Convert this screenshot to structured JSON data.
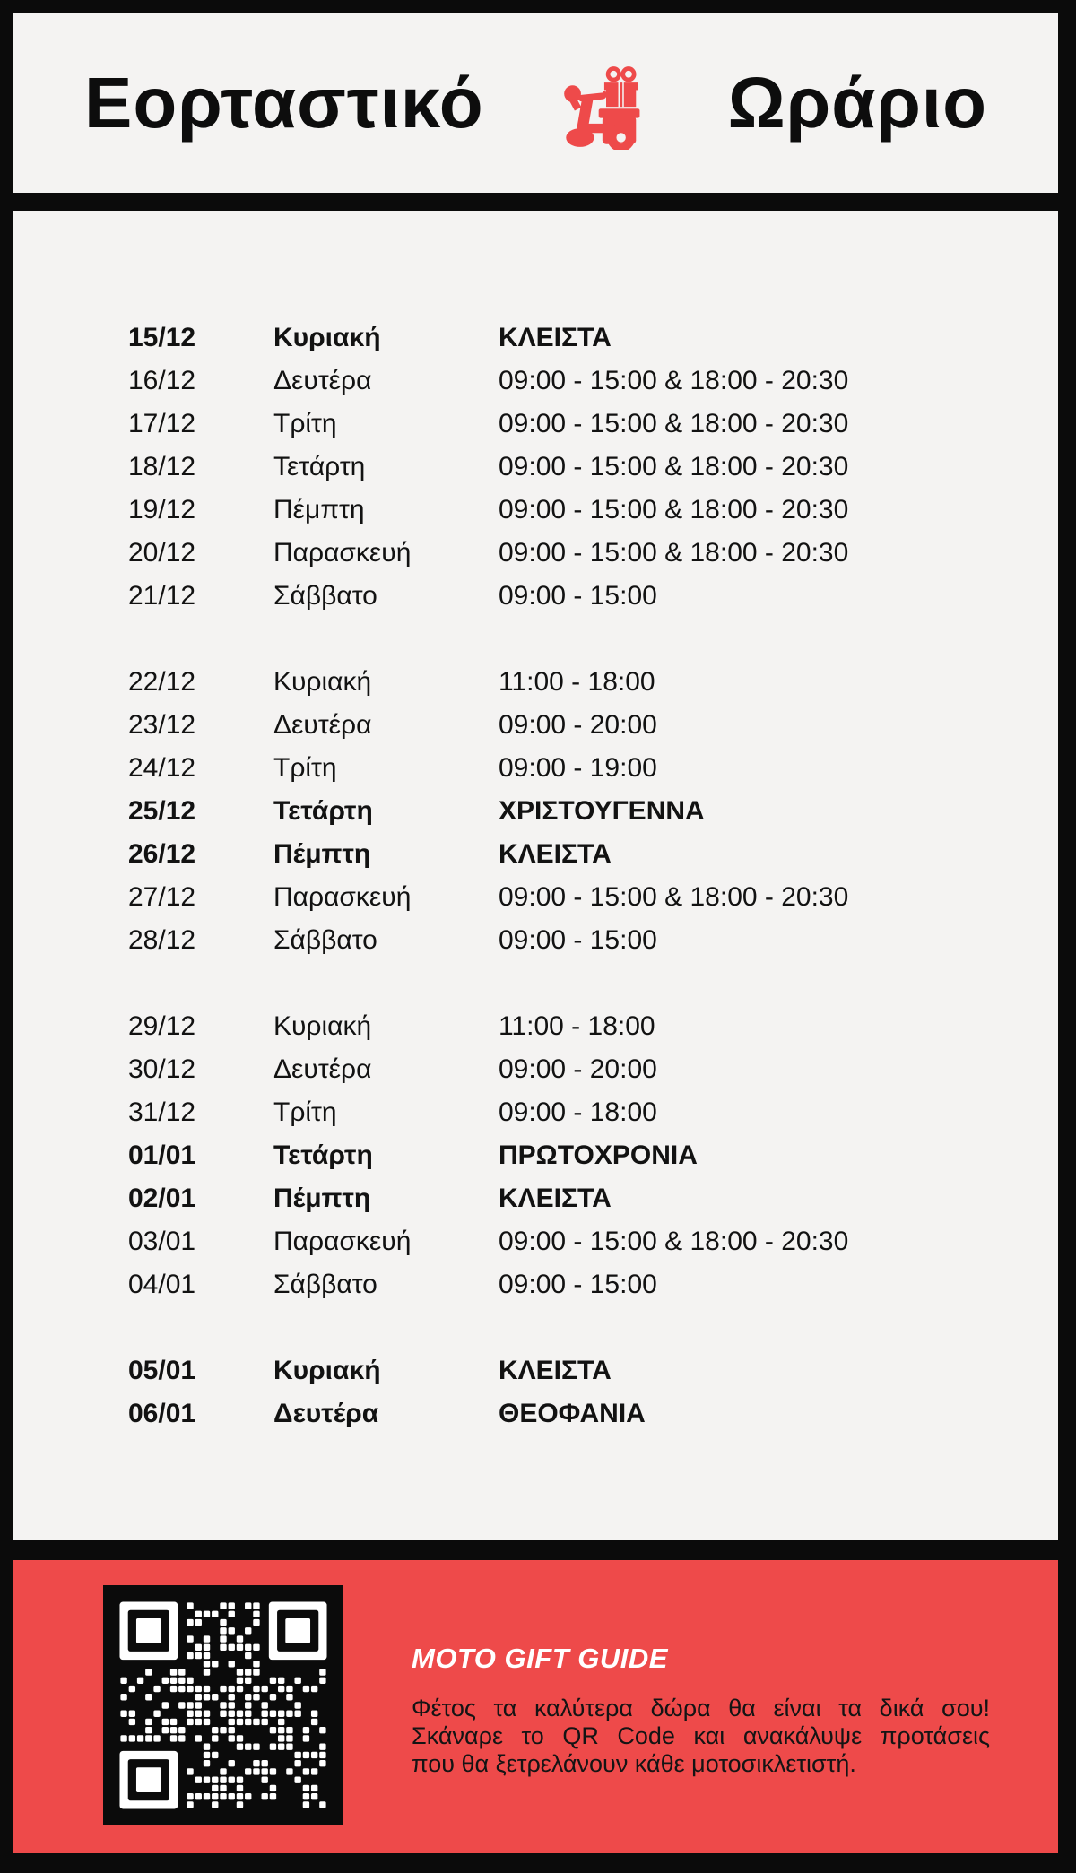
{
  "header": {
    "title_left": "Εορταστικό",
    "title_right": "Ωράριο",
    "icon": "scooter-gift-icon"
  },
  "schedule": {
    "groups": [
      {
        "rows": [
          {
            "date": "15/12",
            "day": "Κυριακή",
            "hours": "ΚΛΕΙΣΤΑ",
            "bold": true
          },
          {
            "date": "16/12",
            "day": "Δευτέρα",
            "hours": "09:00 - 15:00 & 18:00 - 20:30",
            "bold": false
          },
          {
            "date": "17/12",
            "day": "Τρίτη",
            "hours": "09:00 - 15:00 & 18:00 - 20:30",
            "bold": false
          },
          {
            "date": "18/12",
            "day": "Τετάρτη",
            "hours": "09:00 - 15:00 & 18:00 - 20:30",
            "bold": false
          },
          {
            "date": "19/12",
            "day": "Πέμπτη",
            "hours": "09:00 - 15:00 & 18:00 - 20:30",
            "bold": false
          },
          {
            "date": "20/12",
            "day": "Παρασκευή",
            "hours": "09:00 - 15:00 & 18:00 - 20:30",
            "bold": false
          },
          {
            "date": "21/12",
            "day": "Σάββατο",
            "hours": "09:00 - 15:00",
            "bold": false
          }
        ]
      },
      {
        "rows": [
          {
            "date": "22/12",
            "day": "Κυριακή",
            "hours": "11:00 - 18:00",
            "bold": false
          },
          {
            "date": "23/12",
            "day": "Δευτέρα",
            "hours": "09:00 - 20:00",
            "bold": false
          },
          {
            "date": "24/12",
            "day": "Τρίτη",
            "hours": "09:00 - 19:00",
            "bold": false
          },
          {
            "date": "25/12",
            "day": "Τετάρτη",
            "hours": "ΧΡΙΣΤΟΥΓΕΝΝΑ",
            "bold": true
          },
          {
            "date": "26/12",
            "day": "Πέμπτη",
            "hours": "ΚΛΕΙΣΤΑ",
            "bold": true
          },
          {
            "date": "27/12",
            "day": "Παρασκευή",
            "hours": "09:00 - 15:00 & 18:00 - 20:30",
            "bold": false
          },
          {
            "date": "28/12",
            "day": "Σάββατο",
            "hours": "09:00 - 15:00",
            "bold": false
          }
        ]
      },
      {
        "rows": [
          {
            "date": "29/12",
            "day": "Κυριακή",
            "hours": "11:00 - 18:00",
            "bold": false
          },
          {
            "date": "30/12",
            "day": "Δευτέρα",
            "hours": "09:00 - 20:00",
            "bold": false
          },
          {
            "date": "31/12",
            "day": "Τρίτη",
            "hours": "09:00 - 18:00",
            "bold": false
          },
          {
            "date": "01/01",
            "day": "Τετάρτη",
            "hours": "ΠΡΩΤΟΧΡΟΝΙΑ",
            "bold": true
          },
          {
            "date": "02/01",
            "day": "Πέμπτη",
            "hours": "ΚΛΕΙΣΤΑ",
            "bold": true
          },
          {
            "date": "03/01",
            "day": "Παρασκευή",
            "hours": "09:00 - 15:00 & 18:00 - 20:30",
            "bold": false
          },
          {
            "date": "04/01",
            "day": "Σάββατο",
            "hours": "09:00 - 15:00",
            "bold": false
          }
        ]
      },
      {
        "rows": [
          {
            "date": "05/01",
            "day": "Κυριακή",
            "hours": "ΚΛΕΙΣΤΑ",
            "bold": true
          },
          {
            "date": "06/01",
            "day": "Δευτέρα",
            "hours": "ΘΕΟΦΑΝΙΑ",
            "bold": true
          }
        ]
      }
    ]
  },
  "footer": {
    "title": "MOTO GIFT GUIDE",
    "lines": [
      "Φέτος τα καλύτερα δώρα θα είναι τα δικά σου!",
      "Σκάναρε το QR Code και ανακάλυψε προτάσεις",
      "που θα ξετρελάνουν κάθε μοτοσικλετιστή."
    ],
    "qr_icon": "qr-code"
  },
  "colors": {
    "accent_red": "#ee4a4a",
    "panel_gray": "#f4f3f2",
    "frame_black": "#0b0b0b"
  }
}
